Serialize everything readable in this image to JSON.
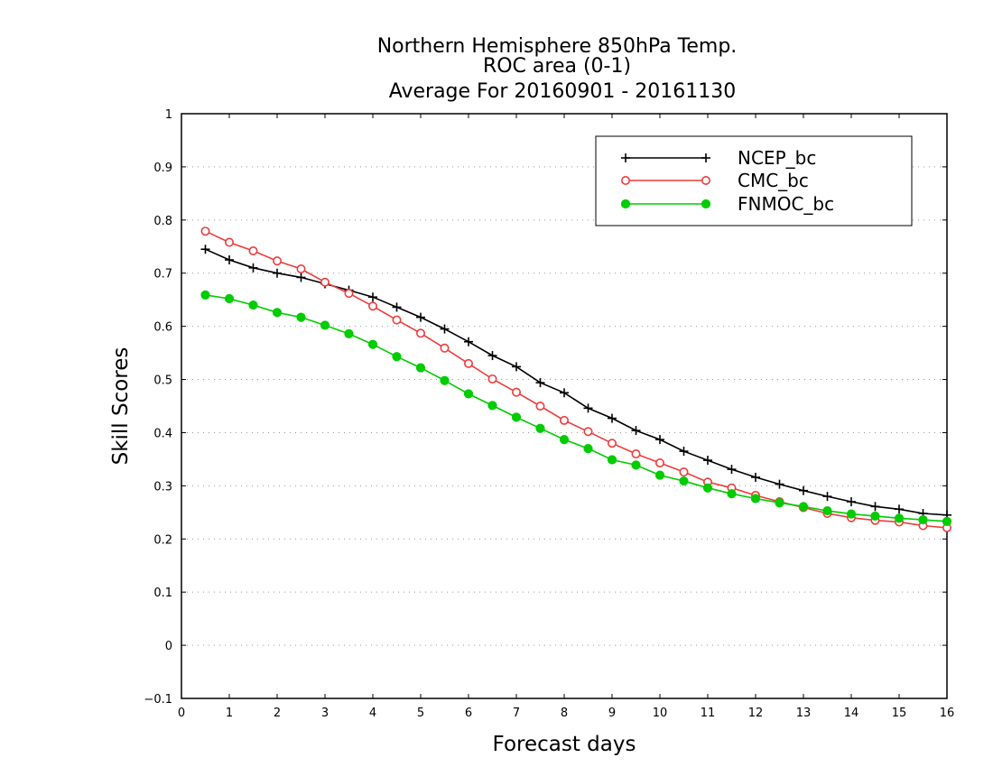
{
  "chart_data": {
    "type": "line",
    "title_lines": [
      "Northern Hemisphere 850hPa Temp.",
      "ROC area (0-1)",
      "Average For 20160901 - 20161130"
    ],
    "xlabel": "Forecast days",
    "ylabel": "Skill Scores",
    "xlim": [
      0,
      16
    ],
    "ylim": [
      -0.1,
      1
    ],
    "xticks": [
      "0",
      "1",
      "2",
      "3",
      "4",
      "5",
      "6",
      "7",
      "8",
      "9",
      "10",
      "11",
      "12",
      "13",
      "14",
      "15",
      "16"
    ],
    "yticks": [
      "−0.1",
      "0",
      "0.1",
      "0.2",
      "0.3",
      "0.4",
      "0.5",
      "0.6",
      "0.7",
      "0.8",
      "0.9",
      "1"
    ],
    "grid": "horizontal-dotted",
    "legend_position": "top-right",
    "x": [
      0.5,
      1,
      1.5,
      2,
      2.5,
      3,
      3.5,
      4,
      4.5,
      5,
      5.5,
      6,
      6.5,
      7,
      7.5,
      8,
      8.5,
      9,
      9.5,
      10,
      10.5,
      11,
      11.5,
      12,
      12.5,
      13,
      13.5,
      14,
      14.5,
      15,
      15.5,
      16
    ],
    "series": [
      {
        "name": "NCEP_bc",
        "color": "#000000",
        "marker": "plus",
        "values": [
          0.745,
          0.725,
          0.71,
          0.7,
          0.692,
          0.68,
          0.668,
          0.655,
          0.636,
          0.617,
          0.595,
          0.571,
          0.545,
          0.524,
          0.494,
          0.475,
          0.446,
          0.427,
          0.404,
          0.387,
          0.365,
          0.348,
          0.331,
          0.316,
          0.303,
          0.291,
          0.28,
          0.27,
          0.261,
          0.256,
          0.248,
          0.245
        ]
      },
      {
        "name": "CMC_bc",
        "color": "#ee3b3b",
        "marker": "open-circle",
        "values": [
          0.779,
          0.758,
          0.742,
          0.723,
          0.708,
          0.683,
          0.662,
          0.638,
          0.612,
          0.587,
          0.559,
          0.53,
          0.501,
          0.476,
          0.45,
          0.423,
          0.402,
          0.38,
          0.36,
          0.343,
          0.326,
          0.307,
          0.296,
          0.282,
          0.27,
          0.259,
          0.248,
          0.24,
          0.235,
          0.232,
          0.225,
          0.221
        ]
      },
      {
        "name": "FNMOC_bc",
        "color": "#00cc00",
        "marker": "filled-circle",
        "values": [
          0.659,
          0.652,
          0.64,
          0.626,
          0.617,
          0.602,
          0.586,
          0.566,
          0.543,
          0.522,
          0.498,
          0.473,
          0.451,
          0.429,
          0.408,
          0.387,
          0.37,
          0.349,
          0.339,
          0.32,
          0.309,
          0.296,
          0.285,
          0.276,
          0.268,
          0.261,
          0.253,
          0.247,
          0.243,
          0.239,
          0.236,
          0.233
        ]
      }
    ]
  }
}
